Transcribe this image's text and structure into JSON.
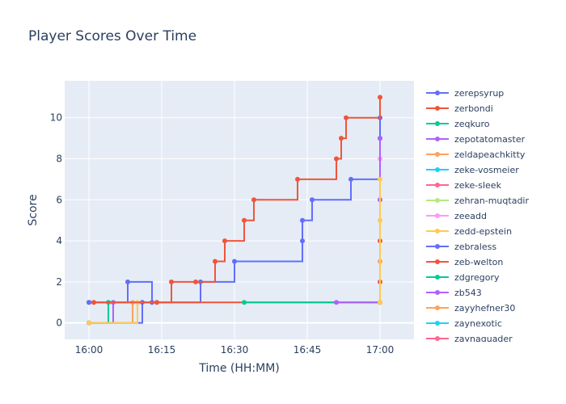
{
  "chart_data": {
    "type": "line",
    "line_shape": "step",
    "title": "Player Scores Over Time",
    "xlabel": "Time (HH:MM)",
    "ylabel": "Score",
    "xlim": [
      "15:55",
      "17:07"
    ],
    "ylim": [
      -0.8,
      11.8
    ],
    "xticks": [
      "16:00",
      "16:15",
      "16:30",
      "16:45",
      "17:00"
    ],
    "yticks": [
      0,
      2,
      4,
      6,
      8,
      10
    ],
    "grid": true,
    "legend_position": "right",
    "series": [
      {
        "name": "zerepsyrup",
        "color": "#636efa",
        "points": [
          [
            "16:00",
            0
          ],
          [
            "16:00",
            0
          ],
          [
            "16:11",
            1
          ],
          [
            "16:23",
            2
          ],
          [
            "16:30",
            3
          ],
          [
            "16:44",
            4
          ],
          [
            "16:44",
            5
          ],
          [
            "16:46",
            6
          ],
          [
            "16:54",
            7
          ],
          [
            "17:00",
            9
          ],
          [
            "17:00",
            10
          ]
        ]
      },
      {
        "name": "zerbondi",
        "color": "#EF553B",
        "points": [
          [
            "16:00",
            1
          ],
          [
            "16:14",
            1
          ],
          [
            "16:17",
            2
          ],
          [
            "16:22",
            2
          ],
          [
            "16:26",
            3
          ],
          [
            "16:28",
            4
          ],
          [
            "16:32",
            5
          ],
          [
            "16:34",
            6
          ],
          [
            "16:43",
            7
          ],
          [
            "16:51",
            8
          ],
          [
            "16:52",
            9
          ],
          [
            "16:53",
            10
          ],
          [
            "17:00",
            11
          ]
        ]
      },
      {
        "name": "zeqkuro",
        "color": "#00cc96",
        "points": [
          [
            "16:00",
            0
          ],
          [
            "16:04",
            1
          ]
        ]
      },
      {
        "name": "zepotatomaster",
        "color": "#ab63fa",
        "points": [
          [
            "16:00",
            0
          ],
          [
            "16:05",
            1
          ]
        ]
      },
      {
        "name": "zeldapeachkitty",
        "color": "#FFA15A",
        "points": [
          [
            "16:00",
            0
          ],
          [
            "16:09",
            1
          ]
        ]
      },
      {
        "name": "zeke-vosmeier",
        "color": "#19d3f3",
        "points": []
      },
      {
        "name": "zeke-sleek",
        "color": "#FF6692",
        "points": []
      },
      {
        "name": "zehran-muqtadir",
        "color": "#B6E880",
        "points": []
      },
      {
        "name": "zeeadd",
        "color": "#FF97FF",
        "points": [
          [
            "17:00",
            8
          ]
        ]
      },
      {
        "name": "zedd-epstein",
        "color": "#FECB52",
        "points": [
          [
            "16:00",
            0
          ],
          [
            "16:10",
            1
          ]
        ]
      },
      {
        "name": "zebraless",
        "color": "#636efa",
        "points": [
          [
            "16:00",
            1
          ],
          [
            "16:08",
            2
          ],
          [
            "16:13",
            1
          ]
        ]
      },
      {
        "name": "zeb-welton",
        "color": "#EF553B",
        "points": [
          [
            "16:01",
            1
          ],
          [
            "17:00",
            2
          ],
          [
            "17:00",
            4
          ]
        ]
      },
      {
        "name": "zdgregory",
        "color": "#00cc96",
        "points": [
          [
            "16:32",
            1
          ],
          [
            "17:00",
            1
          ]
        ]
      },
      {
        "name": "zb543",
        "color": "#ab63fa",
        "points": [
          [
            "16:51",
            1
          ],
          [
            "17:00",
            1
          ],
          [
            "17:00",
            6
          ],
          [
            "17:00",
            9
          ]
        ]
      },
      {
        "name": "zayyhefner30",
        "color": "#FFA15A",
        "points": [
          [
            "17:00",
            1
          ],
          [
            "17:00",
            3
          ]
        ]
      },
      {
        "name": "zaynexotic",
        "color": "#19d3f3",
        "points": []
      },
      {
        "name": "zaynaquader",
        "color": "#FF6692",
        "points": []
      },
      {
        "name": "",
        "color": "#FECB52",
        "points": [
          [
            "17:00",
            1
          ],
          [
            "17:00",
            5
          ],
          [
            "17:00",
            7
          ]
        ]
      }
    ]
  }
}
